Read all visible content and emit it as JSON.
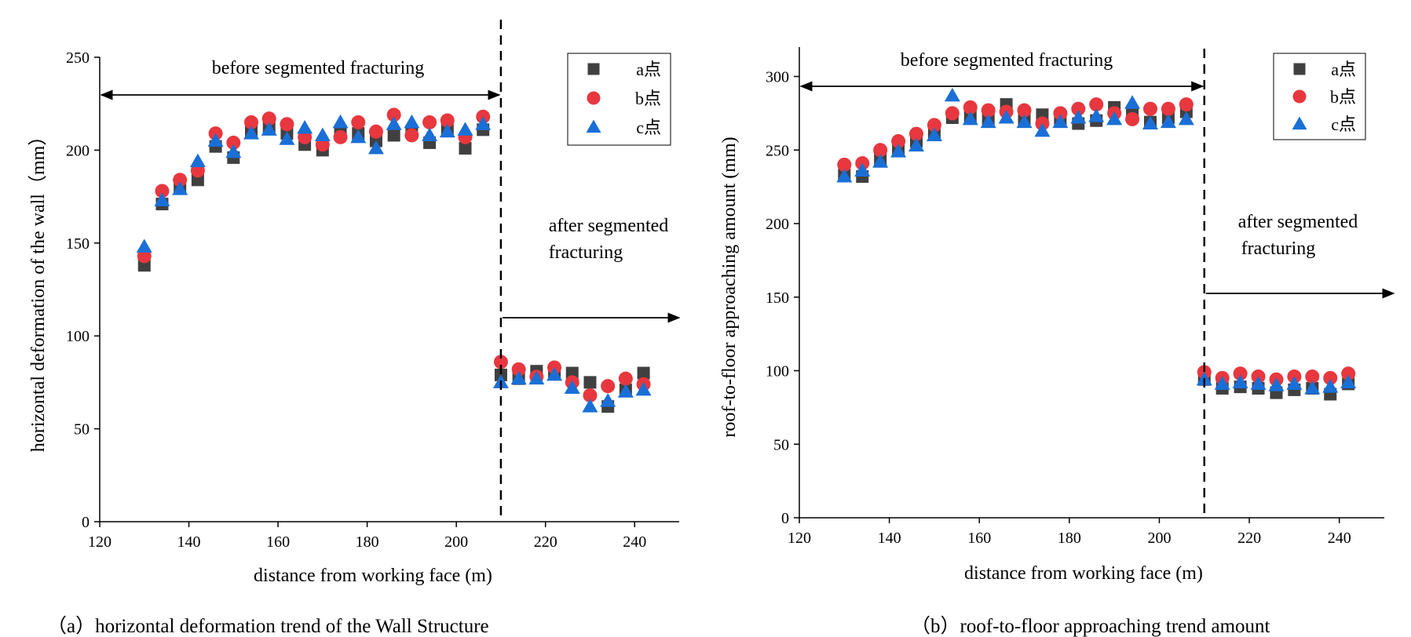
{
  "chart_data": [
    {
      "type": "scatter",
      "title": "",
      "caption": "（a）horizontal deformation trend of the Wall Structure",
      "xlabel": "distance from working face (m)",
      "ylabel": "horizontal deformation of the wall（mm）",
      "xlim": [
        120,
        250
      ],
      "ylim": [
        0,
        250
      ],
      "xticks": [
        120,
        140,
        160,
        180,
        200,
        220,
        240
      ],
      "yticks": [
        0,
        50,
        100,
        150,
        200,
        250
      ],
      "legend_position": "top-right",
      "annotations": {
        "before": "before segmented fracturing",
        "after_line1": "after segmented",
        "after_line2": "fracturing",
        "divider_x": 210
      },
      "series": [
        {
          "name": "a点",
          "marker": "square",
          "color": "#404040",
          "x": [
            130,
            134,
            138,
            142,
            146,
            150,
            154,
            158,
            162,
            166,
            170,
            174,
            178,
            182,
            186,
            190,
            194,
            198,
            202,
            206,
            210,
            214,
            218,
            222,
            226,
            230,
            234,
            238,
            242
          ],
          "y": [
            138,
            171,
            180,
            184,
            202,
            196,
            210,
            212,
            209,
            203,
            200,
            210,
            209,
            205,
            208,
            210,
            204,
            211,
            201,
            211,
            79,
            77,
            81,
            80,
            80,
            75,
            62,
            71,
            80
          ]
        },
        {
          "name": "b点",
          "marker": "circle",
          "color": "#e8373e",
          "x": [
            130,
            134,
            138,
            142,
            146,
            150,
            154,
            158,
            162,
            166,
            170,
            174,
            178,
            182,
            186,
            190,
            194,
            198,
            202,
            206,
            210,
            214,
            218,
            222,
            226,
            230,
            234,
            238,
            242
          ],
          "y": [
            143,
            178,
            184,
            189,
            209,
            204,
            215,
            217,
            214,
            207,
            203,
            207,
            215,
            210,
            219,
            208,
            215,
            216,
            207,
            218,
            86,
            82,
            78,
            83,
            75,
            68,
            73,
            77,
            74
          ]
        },
        {
          "name": "c点",
          "marker": "triangle",
          "color": "#1a6fd6",
          "x": [
            130,
            134,
            138,
            142,
            146,
            150,
            154,
            158,
            162,
            166,
            170,
            174,
            178,
            182,
            186,
            190,
            194,
            198,
            202,
            206,
            210,
            214,
            218,
            222,
            226,
            230,
            234,
            238,
            242
          ],
          "y": [
            148,
            173,
            179,
            194,
            205,
            199,
            209,
            211,
            206,
            212,
            208,
            215,
            207,
            201,
            214,
            215,
            208,
            210,
            211,
            214,
            75,
            77,
            77,
            79,
            72,
            62,
            65,
            70,
            71
          ]
        }
      ]
    },
    {
      "type": "scatter",
      "title": "",
      "caption": "（b）roof-to-floor approaching trend amount",
      "xlabel": "distance from working face (m)",
      "ylabel": "roof-to-floor approaching amount (mm)",
      "xlim": [
        120,
        250
      ],
      "ylim": [
        0,
        320
      ],
      "xticks": [
        120,
        140,
        160,
        180,
        200,
        220,
        240
      ],
      "yticks": [
        0,
        50,
        100,
        150,
        200,
        250,
        300
      ],
      "legend_position": "top-right",
      "annotations": {
        "before": "before segmented fracturing",
        "after_line1": "after segmented",
        "after_line2": "fracturing",
        "divider_x": 210
      },
      "series": [
        {
          "name": "a点",
          "marker": "square",
          "color": "#404040",
          "x": [
            130,
            134,
            138,
            142,
            146,
            150,
            154,
            158,
            162,
            166,
            170,
            174,
            178,
            182,
            186,
            190,
            194,
            198,
            202,
            206,
            210,
            214,
            218,
            222,
            226,
            230,
            234,
            238,
            242
          ],
          "y": [
            233,
            232,
            244,
            250,
            256,
            262,
            272,
            273,
            271,
            281,
            271,
            274,
            270,
            268,
            270,
            279,
            276,
            269,
            272,
            276,
            94,
            88,
            89,
            88,
            85,
            87,
            88,
            84,
            91
          ]
        },
        {
          "name": "b点",
          "marker": "circle",
          "color": "#e8373e",
          "x": [
            130,
            134,
            138,
            142,
            146,
            150,
            154,
            158,
            162,
            166,
            170,
            174,
            178,
            182,
            186,
            190,
            194,
            198,
            202,
            206,
            210,
            214,
            218,
            222,
            226,
            230,
            234,
            238,
            242
          ],
          "y": [
            240,
            241,
            250,
            256,
            261,
            267,
            275,
            279,
            277,
            276,
            277,
            268,
            275,
            278,
            281,
            275,
            271,
            278,
            278,
            281,
            99,
            95,
            98,
            96,
            94,
            96,
            96,
            95,
            98
          ]
        },
        {
          "name": "c点",
          "marker": "triangle",
          "color": "#1a6fd6",
          "x": [
            130,
            134,
            138,
            142,
            146,
            150,
            154,
            158,
            162,
            166,
            170,
            174,
            178,
            182,
            186,
            190,
            194,
            198,
            202,
            206,
            210,
            214,
            218,
            222,
            226,
            230,
            234,
            238,
            242
          ],
          "y": [
            232,
            236,
            242,
            249,
            253,
            260,
            287,
            271,
            269,
            272,
            269,
            263,
            269,
            272,
            273,
            271,
            282,
            268,
            269,
            271,
            94,
            91,
            92,
            91,
            90,
            91,
            88,
            89,
            92
          ]
        }
      ]
    }
  ]
}
